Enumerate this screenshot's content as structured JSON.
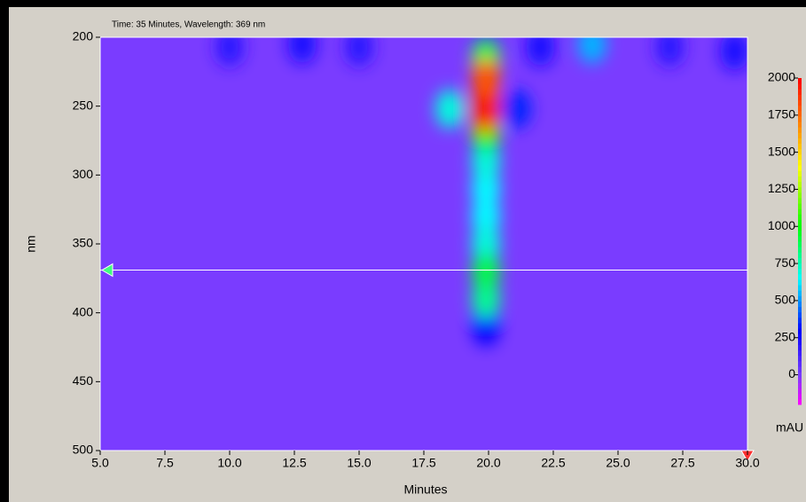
{
  "chart_data": {
    "type": "heatmap",
    "title": "Time: 35 Minutes, Wavelength: 369 nm",
    "xlabel": "Minutes",
    "ylabel": "nm",
    "colorbar_label": "mAU",
    "xlim": [
      5,
      30
    ],
    "xticks": [
      {
        "value": 5,
        "label": "5.0"
      },
      {
        "value": 7.5,
        "label": "7.5"
      },
      {
        "value": 10,
        "label": "10.0"
      },
      {
        "value": 12.5,
        "label": "12.5"
      },
      {
        "value": 15,
        "label": "15.0"
      },
      {
        "value": 17.5,
        "label": "17.5"
      },
      {
        "value": 20,
        "label": "20.0"
      },
      {
        "value": 22.5,
        "label": "22.5"
      },
      {
        "value": 25,
        "label": "25.0"
      },
      {
        "value": 27.5,
        "label": "27.5"
      },
      {
        "value": 30,
        "label": "30.0"
      }
    ],
    "ylim": [
      200,
      500
    ],
    "y_inverted": true,
    "yticks": [
      200,
      250,
      300,
      350,
      400,
      450,
      500
    ],
    "clim": [
      -200,
      2000
    ],
    "cticks": [
      0,
      250,
      500,
      750,
      1000,
      1250,
      1500,
      1750,
      2000
    ],
    "colormap": [
      [
        -200,
        "#ff00ff"
      ],
      [
        0,
        "#7a3cff"
      ],
      [
        300,
        "#0000ff"
      ],
      [
        650,
        "#00ffff"
      ],
      [
        1000,
        "#00ff00"
      ],
      [
        1400,
        "#ffff00"
      ],
      [
        2000,
        "#ff0000"
      ]
    ],
    "cursor_y": 369,
    "spots": {
      "x": [
        10,
        15,
        22,
        27,
        29.5,
        12.8,
        21.1,
        24.0,
        19.9,
        18.5,
        19.9,
        19.9,
        19.9,
        19.9,
        19.9,
        19.9,
        19.9,
        19.9,
        19.9,
        19.9,
        19.9
      ],
      "y": [
        207,
        207,
        207,
        207,
        210,
        205,
        252,
        205,
        410,
        252,
        310,
        330,
        290,
        350,
        390,
        370,
        270,
        215,
        255,
        240,
        230
      ],
      "values": [
        200,
        200,
        250,
        200,
        250,
        250,
        350,
        550,
        300,
        700,
        650,
        650,
        700,
        700,
        800,
        900,
        1000,
        900,
        1900,
        2000,
        1800
      ]
    }
  }
}
